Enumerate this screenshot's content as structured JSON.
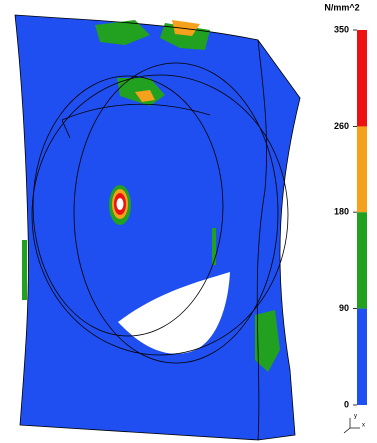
{
  "legend": {
    "title": "N/mm^2",
    "lim": [
      0,
      350
    ],
    "ticks": [
      0,
      90,
      180,
      260,
      350
    ],
    "colors": [
      "#1f4ff0",
      "#22a020",
      "#f5a11c",
      "#ee1111"
    ]
  },
  "triad": {
    "x": "x",
    "y": "y"
  }
}
